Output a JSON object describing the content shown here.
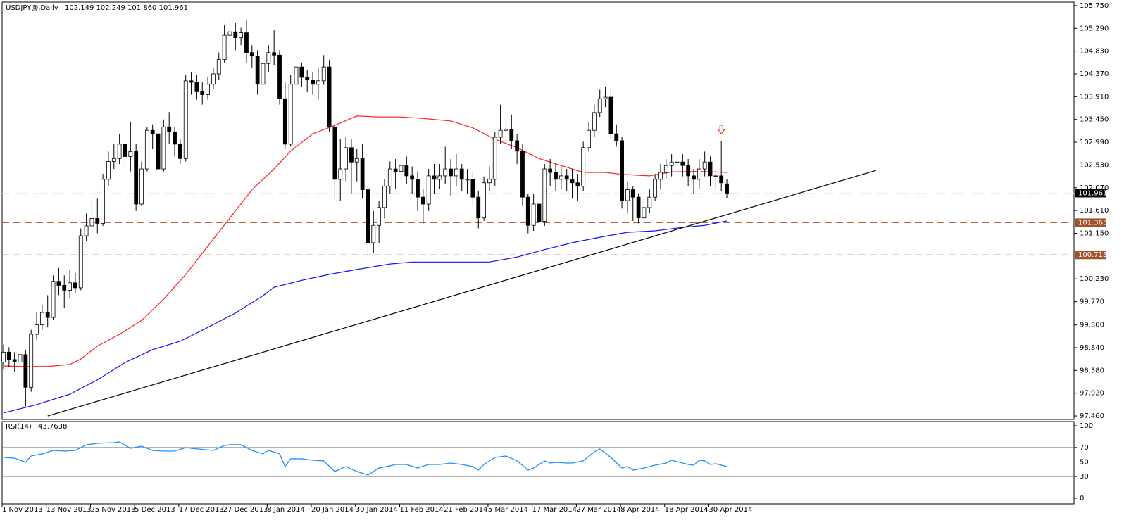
{
  "chart_data": [
    {
      "type": "candlestick",
      "title": "USDJPY@,Daily",
      "ohlc_label": "102.149 102.249 101.860 101.961",
      "categories": [
        "1 Nov 2013",
        null,
        null,
        null,
        null,
        null,
        null,
        null,
        "13 Nov 2013",
        null,
        null,
        null,
        null,
        null,
        null,
        null,
        "25 Nov 2013",
        null,
        null,
        null,
        null,
        null,
        null,
        null,
        "5 Dec 2013",
        null,
        null,
        null,
        null,
        null,
        null,
        null,
        "17 Dec 2013",
        null,
        null,
        null,
        null,
        null,
        null,
        null,
        "27 Dec 2013",
        null,
        null,
        null,
        null,
        null,
        null,
        null,
        "8 Jan 2014",
        null,
        null,
        null,
        null,
        null,
        null,
        null,
        "20 Jan 2014",
        null,
        null,
        null,
        null,
        null,
        null,
        null,
        "30 Jan 2014",
        null,
        null,
        null,
        null,
        null,
        null,
        null,
        "11 Feb 2014",
        null,
        null,
        null,
        null,
        null,
        null,
        null,
        "21 Feb 2014",
        null,
        null,
        null,
        null,
        null,
        null,
        null,
        "5 Mar 2014",
        null,
        null,
        null,
        null,
        null,
        null,
        null,
        "17 Mar 2014",
        null,
        null,
        null,
        null,
        null,
        null,
        null,
        "27 Mar 2014",
        null,
        null,
        null,
        null,
        null,
        null,
        null,
        "8 Apr 2014",
        null,
        null,
        null,
        null,
        null,
        null,
        null,
        "18 Apr 2014",
        null,
        null,
        null,
        null,
        null,
        null,
        null,
        "30 Apr 2014",
        null,
        null,
        null
      ],
      "open": [
        98.55,
        98.75,
        98.6,
        98.55,
        98.7,
        98.04,
        99.11,
        99.3,
        99.55,
        99.45,
        100.18,
        100.1,
        100.0,
        100.15,
        100.05,
        101.1,
        101.3,
        101.45,
        101.35,
        102.24,
        102.6,
        102.66,
        102.95,
        102.7,
        102.8,
        101.74,
        102.45,
        103.23,
        103.16,
        102.45,
        103.3,
        103.2,
        102.95,
        102.66,
        104.23,
        104.2,
        104.01,
        103.95,
        104.16,
        104.37,
        104.66,
        105.15,
        105.22,
        105.1,
        105.2,
        104.8,
        104.73,
        104.16,
        104.58,
        104.8,
        104.75,
        103.87,
        102.95,
        104.16,
        104.51,
        104.3,
        104.25,
        104.16,
        104.23,
        104.51,
        103.3,
        102.24,
        102.45,
        102.88,
        102.59,
        102.66,
        102.03,
        100.96,
        101.31,
        101.67,
        102.1,
        102.45,
        102.4,
        102.52,
        102.31,
        102.24,
        101.88,
        101.74,
        102.31,
        102.24,
        102.31,
        102.45,
        102.31,
        102.45,
        102.24,
        102.24,
        101.88,
        101.46,
        102.17,
        102.24,
        103.09,
        103.23,
        103.25,
        103.02,
        102.81,
        101.88,
        101.31,
        101.74,
        101.39,
        102.45,
        102.38,
        102.24,
        102.31,
        102.24,
        102.17,
        102.1,
        102.88,
        103.23,
        103.59,
        103.87,
        103.9,
        103.16,
        103.02,
        101.81,
        102.03,
        101.88,
        101.46,
        101.67,
        101.88,
        102.24,
        102.38,
        102.52,
        102.59,
        102.59,
        102.52,
        102.31,
        102.24,
        102.45,
        102.59,
        102.31,
        102.31,
        102.149
      ],
      "high": [
        98.9,
        98.85,
        98.75,
        98.85,
        98.8,
        99.2,
        99.55,
        99.7,
        99.9,
        100.3,
        100.45,
        100.3,
        100.4,
        100.35,
        101.25,
        101.55,
        101.8,
        101.85,
        102.35,
        102.8,
        102.95,
        103.15,
        103.05,
        103.4,
        102.95,
        102.6,
        103.3,
        103.35,
        103.2,
        103.45,
        103.6,
        103.3,
        103.05,
        104.35,
        104.4,
        104.35,
        104.2,
        104.3,
        104.5,
        104.8,
        105.35,
        105.45,
        105.4,
        105.3,
        105.45,
        104.95,
        104.85,
        104.75,
        104.95,
        105.25,
        104.85,
        104.2,
        104.35,
        104.75,
        104.6,
        104.45,
        104.4,
        104.5,
        104.75,
        104.65,
        103.4,
        103.05,
        103.1,
        103.05,
        102.85,
        102.95,
        102.1,
        101.6,
        101.8,
        102.25,
        102.6,
        102.65,
        102.7,
        102.7,
        102.5,
        102.4,
        102.05,
        102.45,
        102.55,
        102.55,
        102.9,
        102.65,
        102.75,
        102.55,
        102.45,
        102.4,
        102.0,
        102.3,
        102.5,
        103.2,
        103.75,
        103.45,
        103.55,
        103.15,
        102.95,
        101.95,
        101.95,
        101.85,
        102.55,
        102.65,
        102.55,
        102.5,
        102.45,
        102.45,
        102.35,
        103.0,
        103.4,
        103.75,
        104.05,
        104.1,
        104.1,
        103.35,
        103.1,
        102.2,
        102.1,
        101.95,
        101.85,
        102.05,
        102.35,
        102.55,
        102.65,
        102.75,
        102.75,
        102.75,
        102.65,
        102.45,
        102.65,
        102.8,
        102.7,
        102.45,
        103.02,
        102.249
      ],
      "low": [
        98.4,
        98.45,
        98.35,
        98.4,
        97.65,
        97.95,
        99.0,
        99.2,
        99.25,
        99.4,
        99.9,
        99.65,
        99.85,
        99.95,
        100.0,
        101.0,
        101.15,
        101.15,
        101.3,
        102.1,
        102.45,
        102.55,
        102.45,
        102.4,
        101.6,
        101.7,
        102.4,
        102.85,
        102.35,
        102.4,
        102.95,
        102.7,
        102.55,
        102.6,
        103.95,
        103.85,
        103.75,
        103.85,
        104.05,
        104.25,
        104.6,
        104.95,
        104.85,
        104.95,
        104.6,
        104.5,
        103.95,
        104.05,
        104.4,
        104.55,
        103.75,
        102.85,
        102.9,
        104.05,
        104.1,
        104.0,
        103.95,
        103.85,
        104.15,
        103.2,
        101.85,
        101.8,
        102.2,
        101.95,
        102.2,
        101.85,
        100.75,
        100.75,
        100.95,
        101.45,
        101.95,
        102.05,
        102.2,
        102.15,
        101.95,
        101.6,
        101.35,
        101.6,
        101.95,
        102.05,
        102.15,
        101.9,
        102.1,
        102.0,
        101.95,
        101.7,
        101.25,
        101.4,
        102.0,
        102.1,
        102.95,
        102.95,
        102.85,
        102.55,
        101.7,
        101.15,
        101.2,
        101.2,
        101.3,
        102.1,
        102.0,
        102.05,
        102.0,
        101.85,
        101.8,
        102.0,
        102.8,
        103.1,
        103.5,
        103.7,
        103.05,
        102.9,
        101.65,
        101.55,
        101.4,
        101.35,
        101.35,
        101.55,
        101.8,
        102.05,
        102.25,
        102.3,
        102.35,
        102.3,
        102.1,
        101.95,
        102.05,
        102.3,
        102.1,
        102.05,
        102.0,
        101.86
      ],
      "close": [
        98.75,
        98.6,
        98.55,
        98.7,
        98.04,
        99.11,
        99.3,
        99.55,
        99.45,
        100.18,
        100.1,
        100.0,
        100.15,
        100.05,
        101.1,
        101.3,
        101.45,
        101.35,
        102.24,
        102.6,
        102.66,
        102.95,
        102.7,
        102.8,
        101.74,
        102.45,
        103.23,
        103.16,
        102.45,
        103.3,
        103.2,
        102.95,
        102.66,
        104.23,
        104.2,
        104.01,
        103.95,
        104.16,
        104.37,
        104.66,
        105.15,
        105.22,
        105.1,
        105.2,
        104.8,
        104.73,
        104.16,
        104.58,
        104.8,
        104.75,
        103.87,
        102.95,
        104.16,
        104.51,
        104.3,
        104.25,
        104.16,
        104.23,
        104.51,
        103.3,
        102.24,
        102.45,
        102.88,
        102.59,
        102.66,
        102.03,
        100.96,
        101.31,
        101.67,
        102.1,
        102.45,
        102.4,
        102.52,
        102.31,
        102.24,
        101.88,
        101.74,
        102.31,
        102.24,
        102.31,
        102.45,
        102.31,
        102.45,
        102.24,
        102.24,
        101.88,
        101.46,
        102.17,
        102.24,
        103.09,
        103.23,
        103.25,
        103.02,
        102.81,
        101.88,
        101.31,
        101.74,
        101.39,
        102.45,
        102.38,
        102.24,
        102.31,
        102.24,
        102.17,
        102.1,
        102.88,
        103.23,
        103.59,
        103.87,
        103.9,
        103.16,
        103.02,
        101.81,
        102.03,
        101.88,
        101.46,
        101.67,
        101.88,
        102.24,
        102.38,
        102.52,
        102.59,
        102.59,
        102.52,
        102.31,
        102.24,
        102.45,
        102.59,
        102.31,
        102.31,
        102.17,
        101.961
      ],
      "up_color": "#ffffff",
      "down_color": "#000000",
      "series": [
        {
          "color": "#ff2020",
          "x": [
            0,
            3,
            8,
            12,
            14,
            17,
            21,
            25,
            29,
            33,
            37,
            41,
            45,
            49,
            52,
            56,
            60,
            64,
            68,
            72,
            76,
            81,
            85,
            89,
            93,
            97,
            101,
            105,
            109,
            112,
            117,
            121,
            126,
            131
          ],
          "values": [
            98.47,
            98.46,
            98.46,
            98.5,
            98.61,
            98.87,
            99.11,
            99.39,
            99.82,
            100.32,
            100.89,
            101.46,
            102.03,
            102.45,
            102.81,
            103.16,
            103.33,
            103.52,
            103.5,
            103.5,
            103.47,
            103.42,
            103.28,
            103.05,
            102.88,
            102.66,
            102.52,
            102.38,
            102.38,
            102.34,
            102.31,
            102.39,
            102.4,
            102.38
          ]
        },
        {
          "color": "#1010ff",
          "x": [
            0,
            6,
            12,
            17,
            22,
            27,
            32,
            37,
            42,
            47,
            49,
            54,
            59,
            64,
            70,
            74,
            88,
            93,
            98,
            103,
            108,
            113,
            118,
            123,
            127,
            131
          ],
          "values": [
            97.52,
            97.69,
            97.9,
            98.19,
            98.54,
            98.8,
            98.97,
            99.25,
            99.54,
            99.89,
            100.06,
            100.2,
            100.32,
            100.42,
            100.53,
            100.57,
            100.57,
            100.67,
            100.82,
            100.96,
            101.07,
            101.17,
            101.2,
            101.27,
            101.31,
            101.4
          ]
        },
        {
          "color": "#000000",
          "x": [
            8,
            158
          ],
          "values": [
            97.46,
            102.42
          ]
        }
      ],
      "hlines": [
        {
          "value": 101.365,
          "color": "#a0522d"
        },
        {
          "value": 100.713,
          "color": "#a0522d"
        }
      ],
      "ylim": [
        97.39,
        105.82
      ],
      "yticks": [
        {
          "value": 105.75,
          "label": "105.750"
        },
        {
          "value": 105.29,
          "label": "105.290"
        },
        {
          "value": 104.83,
          "label": "104.830"
        },
        {
          "value": 104.37,
          "label": "104.370"
        },
        {
          "value": 103.91,
          "label": "103.910"
        },
        {
          "value": 103.45,
          "label": "103.450"
        },
        {
          "value": 102.99,
          "label": "102.990"
        },
        {
          "value": 102.53,
          "label": "102.530"
        },
        {
          "value": 102.07,
          "label": "102.070"
        },
        {
          "value": 101.61,
          "label": "101.610"
        },
        {
          "value": 101.15,
          "label": "101.150"
        },
        {
          "value": 100.23,
          "label": "100.230"
        },
        {
          "value": 99.77,
          "label": "99.770"
        },
        {
          "value": 99.3,
          "label": "99.300"
        },
        {
          "value": 98.84,
          "label": "98.840"
        },
        {
          "value": 98.38,
          "label": "98.380"
        },
        {
          "value": 97.92,
          "label": "97.920"
        },
        {
          "value": 97.46,
          "label": "97.460"
        }
      ]
    },
    {
      "type": "line",
      "title": "RSI(14)",
      "value": 43.7638,
      "color": "#1e90ff",
      "x": [
        0,
        2,
        4,
        5,
        7,
        9,
        11,
        13,
        14,
        15,
        17,
        20,
        21,
        23,
        25,
        27,
        29,
        31,
        33,
        34,
        38,
        40,
        41,
        43,
        45,
        47,
        48,
        50,
        51,
        52,
        54,
        56,
        58,
        60,
        62,
        64,
        66,
        68,
        70,
        71,
        73,
        75,
        77,
        79,
        81,
        83,
        85,
        86,
        87,
        89,
        91,
        93,
        95,
        96,
        98,
        99,
        100,
        102,
        103,
        105,
        107,
        108,
        110,
        112,
        113,
        114,
        116,
        118,
        120,
        121,
        122,
        124,
        125,
        126,
        127,
        128,
        129,
        131
      ],
      "values": [
        56.3,
        55.3,
        49.5,
        58.3,
        61.2,
        66.0,
        65.0,
        66.0,
        69.9,
        73.8,
        75.7,
        76.7,
        77.7,
        68.9,
        71.8,
        66.0,
        65.0,
        65.0,
        69.9,
        68.9,
        66.0,
        72.8,
        73.8,
        73.8,
        66.0,
        61.2,
        66.0,
        61.2,
        43.7,
        54.4,
        54.4,
        52.4,
        51.5,
        36.9,
        43.7,
        36.9,
        32.0,
        41.7,
        44.7,
        46.6,
        46.6,
        41.7,
        46.6,
        46.6,
        48.5,
        46.6,
        43.7,
        38.8,
        46.6,
        56.3,
        58.3,
        51.5,
        38.8,
        41.7,
        51.5,
        48.5,
        49.5,
        48.5,
        48.5,
        51.5,
        64.1,
        68.0,
        56.3,
        41.7,
        43.7,
        38.8,
        41.7,
        45.6,
        48.5,
        52.4,
        50.5,
        46.6,
        45.6,
        52.4,
        51.5,
        46.6,
        47.6,
        43.76
      ],
      "levels": [
        70,
        50,
        30
      ],
      "ylim": [
        -7.8,
        105.8
      ],
      "yticks": [
        100,
        70,
        50,
        30,
        0
      ]
    }
  ]
}
